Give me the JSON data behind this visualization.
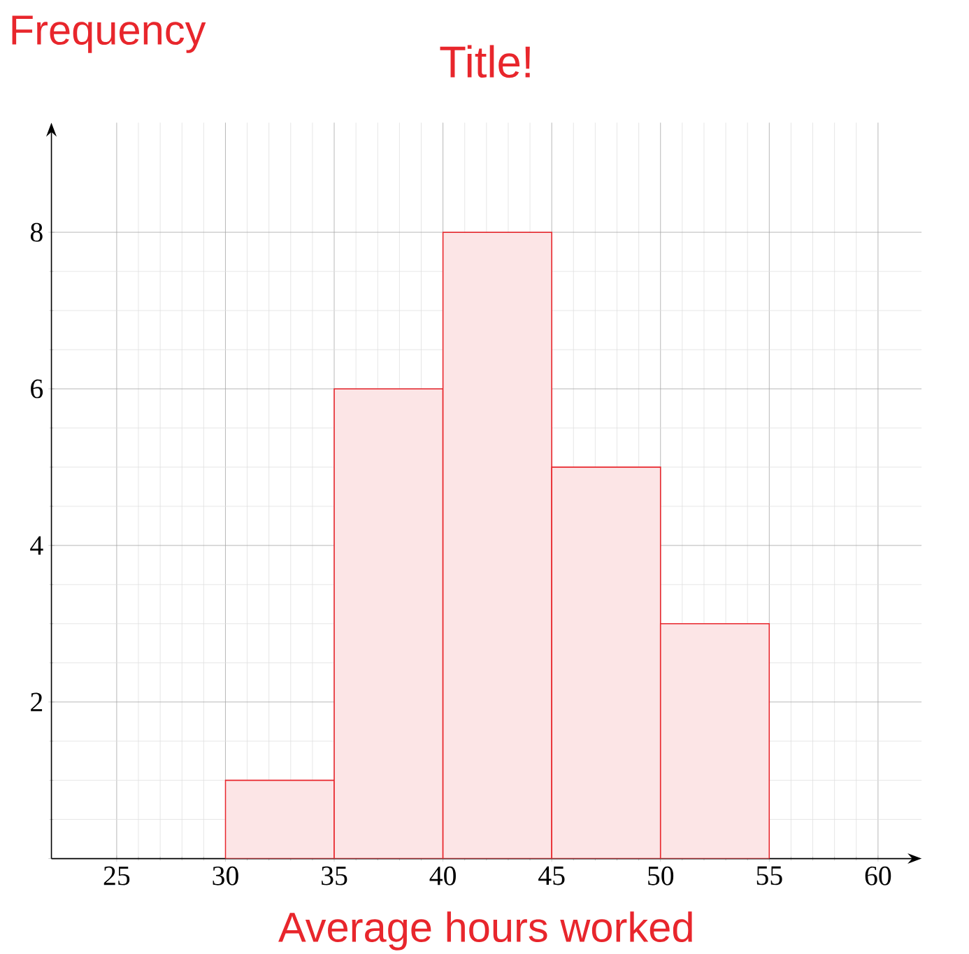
{
  "chart_data": {
    "type": "histogram",
    "title": "Title!",
    "xlabel": "Average hours worked",
    "ylabel": "Frequency",
    "bins": [
      30,
      35,
      40,
      45,
      50,
      55
    ],
    "values": [
      1,
      6,
      8,
      5,
      3
    ],
    "color": "#e8262c",
    "xlim": [
      22,
      62
    ],
    "ylim": [
      0,
      9.4
    ],
    "xticks": [
      25,
      30,
      35,
      40,
      45,
      50,
      55,
      60
    ],
    "yticks": [
      {
        "value": 0,
        "label": null
      },
      2,
      4,
      6,
      8
    ],
    "grid": true
  }
}
